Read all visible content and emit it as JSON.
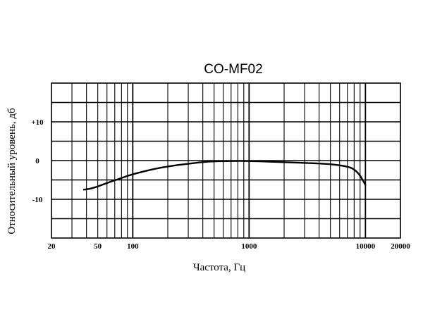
{
  "chart_data": {
    "type": "line",
    "title": "CO-MF02",
    "xlabel": "Частота, Гц",
    "ylabel": "Относительный уровень, дб",
    "x_scale": "log",
    "xlim": [
      20,
      20000
    ],
    "ylim": [
      -20,
      20
    ],
    "grid": true,
    "x_tick_labels": [
      {
        "value": 20,
        "label": "20"
      },
      {
        "value": 50,
        "label": "50"
      },
      {
        "value": 100,
        "label": "100"
      },
      {
        "value": 1000,
        "label": "1000"
      },
      {
        "value": 10000,
        "label": "10000"
      },
      {
        "value": 20000,
        "label": "20000"
      }
    ],
    "y_tick_labels": [
      {
        "value": 10,
        "label": "+10"
      },
      {
        "value": 0,
        "label": "0"
      },
      {
        "value": -10,
        "label": "-10"
      }
    ],
    "series": [
      {
        "color": "#000000",
        "x": [
          38,
          45,
          60,
          80,
          100,
          150,
          200,
          300,
          400,
          500,
          700,
          1000,
          2000,
          3000,
          5000,
          7000,
          8000,
          9000,
          10000
        ],
        "y": [
          -7.5,
          -7.2,
          -5.8,
          -4.5,
          -3.5,
          -2.2,
          -1.5,
          -0.8,
          -0.4,
          -0.2,
          -0.1,
          -0.1,
          -0.4,
          -0.6,
          -0.9,
          -1.5,
          -2.2,
          -3.8,
          -6.3
        ]
      }
    ]
  }
}
